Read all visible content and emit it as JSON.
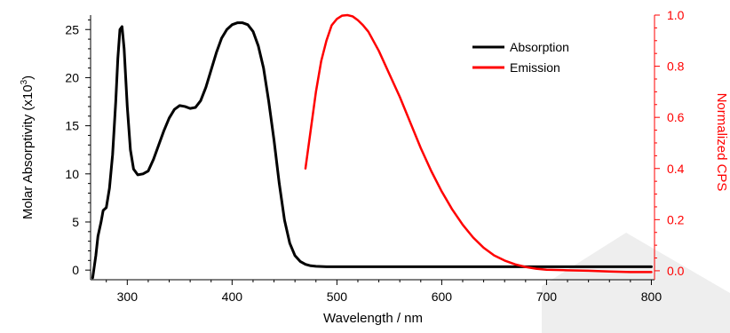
{
  "chart_data": {
    "type": "line",
    "xlabel": "Wavelength / nm",
    "ylabel_left": "Molar Absorptivity (x10^3)",
    "ylabel_left_base": "Molar Absorptivity (x10",
    "ylabel_left_exp": "3",
    "ylabel_left_close": ")",
    "ylabel_right": "Normalized CPS",
    "xlim": [
      265,
      803
    ],
    "ylim_left": [
      -1,
      26.5
    ],
    "ylim_right": [
      -0.035,
      1.0
    ],
    "x_ticks": [
      "300",
      "400",
      "500",
      "600",
      "700",
      "800"
    ],
    "y_left_ticks": [
      "0",
      "5",
      "10",
      "15",
      "20",
      "25"
    ],
    "y_right_ticks": [
      "0.0",
      "0.2",
      "0.4",
      "0.6",
      "0.8",
      "1.0"
    ],
    "grid": false,
    "legend_position": "top-right",
    "colors": {
      "absorption": "#000000",
      "emission": "#ff0000"
    },
    "series": [
      {
        "name": "Absorption",
        "axis": "left",
        "color": "#000000",
        "x": [
          267,
          270,
          272,
          275,
          277,
          280,
          283,
          286,
          289,
          291,
          293,
          295,
          297,
          300,
          303,
          306,
          310,
          315,
          320,
          325,
          330,
          335,
          340,
          345,
          350,
          355,
          360,
          365,
          370,
          375,
          380,
          385,
          390,
          395,
          400,
          405,
          410,
          415,
          420,
          425,
          430,
          435,
          440,
          445,
          450,
          455,
          460,
          465,
          470,
          475,
          480,
          490,
          500,
          550,
          600,
          650,
          700,
          750,
          800
        ],
        "y": [
          -0.8,
          1.5,
          3.5,
          5.0,
          6.2,
          6.5,
          8.5,
          12.0,
          17.5,
          22.0,
          25.0,
          25.3,
          23.0,
          17.0,
          12.5,
          10.5,
          9.9,
          10.0,
          10.3,
          11.5,
          13.0,
          14.5,
          15.8,
          16.7,
          17.1,
          17.0,
          16.8,
          16.9,
          17.6,
          19.0,
          20.8,
          22.6,
          24.1,
          25.0,
          25.5,
          25.7,
          25.7,
          25.5,
          24.8,
          23.3,
          21.0,
          17.5,
          13.5,
          9.0,
          5.2,
          2.8,
          1.5,
          0.9,
          0.6,
          0.45,
          0.4,
          0.35,
          0.35,
          0.35,
          0.35,
          0.35,
          0.35,
          0.35,
          0.35
        ]
      },
      {
        "name": "Emission",
        "axis": "right",
        "color": "#ff0000",
        "x": [
          470,
          475,
          480,
          485,
          490,
          495,
          500,
          505,
          510,
          515,
          520,
          525,
          530,
          540,
          550,
          560,
          570,
          580,
          590,
          600,
          610,
          620,
          630,
          640,
          650,
          660,
          670,
          680,
          690,
          700,
          720,
          740,
          760,
          780,
          800
        ],
        "y": [
          0.4,
          0.55,
          0.7,
          0.82,
          0.9,
          0.96,
          0.985,
          0.998,
          1.0,
          0.995,
          0.98,
          0.96,
          0.935,
          0.86,
          0.77,
          0.68,
          0.58,
          0.48,
          0.39,
          0.31,
          0.24,
          0.18,
          0.13,
          0.09,
          0.06,
          0.04,
          0.025,
          0.015,
          0.008,
          0.004,
          0.002,
          0.0,
          -0.003,
          -0.005,
          -0.005
        ]
      }
    ]
  }
}
